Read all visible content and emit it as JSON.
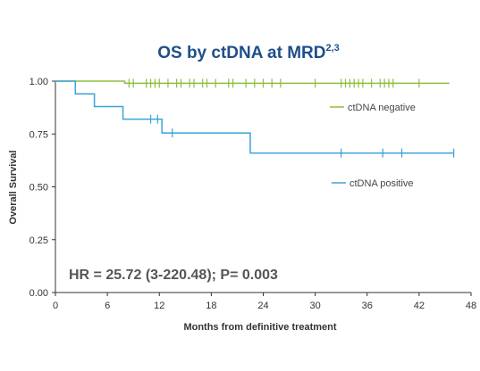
{
  "chart_data": {
    "type": "line",
    "subtype": "kaplan-meier",
    "title": "OS by ctDNA at MRD",
    "title_superscript": "2,3",
    "xlabel": "Months from definitive treatment",
    "ylabel": "Overall Survival",
    "xlim": [
      0,
      48
    ],
    "ylim": [
      0,
      1
    ],
    "xticks": [
      "0",
      "6",
      "12",
      "18",
      "24",
      "30",
      "36",
      "42",
      "48"
    ],
    "yticks": [
      "0.00",
      "0.25",
      "0.50",
      "0.75",
      "1.00"
    ],
    "grid": false,
    "legend_position": "right",
    "annotation": "HR = 25.72 (3-220.48); P= 0.003",
    "colors": {
      "title": "#1e4f8a",
      "negative": "#8cbf3f",
      "positive": "#3ba3d6",
      "axis": "#333333"
    },
    "series": [
      {
        "name": "ctDNA negative",
        "steps": [
          [
            0,
            1.0
          ],
          [
            8,
            0.99
          ],
          [
            45.5,
            0.99
          ]
        ],
        "censored": [
          8.5,
          9,
          10.5,
          11,
          11.5,
          12,
          13,
          14,
          14.5,
          15.5,
          16,
          17,
          17.5,
          18.5,
          20,
          20.5,
          22,
          23,
          24,
          25,
          26,
          30,
          33,
          33.5,
          34,
          34.5,
          35,
          35.5,
          36.5,
          37.5,
          38,
          38.5,
          39,
          42
        ]
      },
      {
        "name": "ctDNA positive",
        "steps": [
          [
            0,
            1.0
          ],
          [
            2.3,
            0.94
          ],
          [
            4.5,
            0.88
          ],
          [
            7.8,
            0.82
          ],
          [
            12.3,
            0.755
          ],
          [
            22.5,
            0.66
          ],
          [
            46,
            0.66
          ]
        ],
        "censored": [
          11,
          11.8,
          13.5,
          33,
          37.8,
          40,
          46
        ]
      }
    ]
  }
}
